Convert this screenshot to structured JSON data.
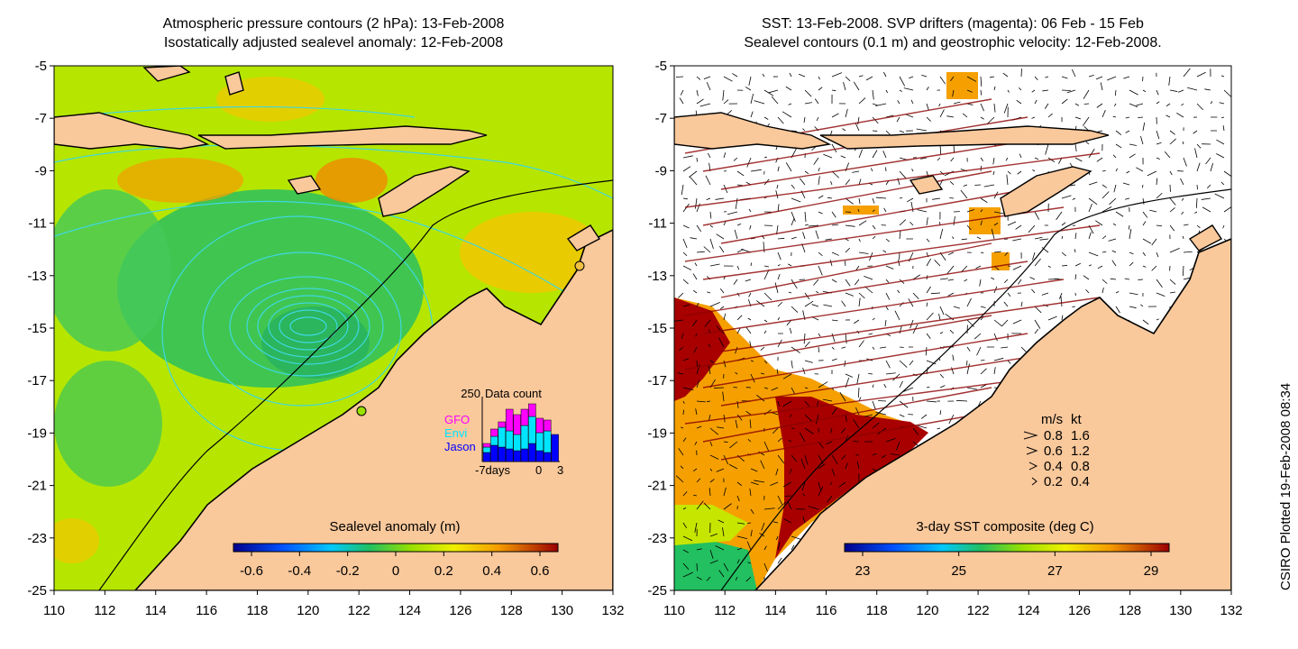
{
  "left_panel": {
    "title_line1": "Atmospheric pressure contours (2 hPa): 13-Feb-2008",
    "title_line2": "Isostatically adjusted sealevel anomaly: 12-Feb-2008",
    "x_ticks": [
      "110",
      "112",
      "114",
      "116",
      "118",
      "120",
      "122",
      "124",
      "126",
      "128",
      "130",
      "132"
    ],
    "y_ticks": [
      "-5",
      "-7",
      "-9",
      "-11",
      "-13",
      "-15",
      "-17",
      "-19",
      "-21",
      "-23",
      "-25"
    ],
    "colorbar_label": "Sealevel anomaly (m)",
    "colorbar_ticks": [
      "-0.6",
      "-0.4",
      "-0.2",
      "0",
      "0.2",
      "0.4",
      "0.6"
    ],
    "inset": {
      "title": "Data count",
      "y_label": "250",
      "x_labels": [
        "-7days",
        "0",
        "3"
      ],
      "legend": [
        {
          "name": "GFO",
          "color": "#ff00ff"
        },
        {
          "name": "Envi",
          "color": "#00e5ff"
        },
        {
          "name": "Jason",
          "color": "#0000ff"
        }
      ]
    }
  },
  "right_panel": {
    "title_line1": "SST: 13-Feb-2008. SVP drifters (magenta): 06 Feb - 15 Feb",
    "title_line2": "Sealevel contours (0.1 m) and geostrophic velocity: 12-Feb-2008.",
    "x_ticks": [
      "110",
      "112",
      "114",
      "116",
      "118",
      "120",
      "122",
      "124",
      "126",
      "128",
      "130",
      "132"
    ],
    "y_ticks": [
      "-5",
      "-7",
      "-9",
      "-11",
      "-13",
      "-15",
      "-17",
      "-19",
      "-21",
      "-23",
      "-25"
    ],
    "colorbar_label": "3-day SST composite (deg C)",
    "colorbar_ticks": [
      "23",
      "25",
      "27",
      "29"
    ],
    "velocity_legend": {
      "header_ms": "m/s",
      "header_kt": "kt",
      "rows": [
        {
          "ms": "0.8",
          "kt": "1.6"
        },
        {
          "ms": "0.6",
          "kt": "1.2"
        },
        {
          "ms": "0.4",
          "kt": "0.8"
        },
        {
          "ms": "0.2",
          "kt": "0.4"
        }
      ]
    }
  },
  "stamp": "CSIRO Plotted 19-Feb-2008 08:34",
  "colors": {
    "land": "#f9c89b",
    "ocean_mid": "#b6e600",
    "ocean_green": "#33c15a",
    "warm": "#f5a000",
    "sst_hot": "#a80000",
    "contour": "#3fd8e0"
  }
}
